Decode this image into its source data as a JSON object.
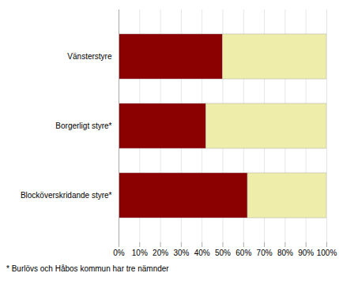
{
  "chart_data": {
    "type": "bar",
    "orientation": "horizontal",
    "stacked": true,
    "categories": [
      "Blocköverskridande styre*",
      "Borgerligt styre*",
      "Vänsterstyre"
    ],
    "series": [
      {
        "color": "#8B0000",
        "values": [
          62,
          42,
          50
        ]
      },
      {
        "color": "#EEEEAA",
        "values": [
          38,
          58,
          50
        ]
      }
    ],
    "xlim": [
      0,
      100
    ],
    "xticks": [
      {
        "value": 0,
        "label": "0%"
      },
      {
        "value": 10,
        "label": "10%"
      },
      {
        "value": 20,
        "label": "20%"
      },
      {
        "value": 30,
        "label": "30%"
      },
      {
        "value": 40,
        "label": "40%"
      },
      {
        "value": 50,
        "label": "50%"
      },
      {
        "value": 60,
        "label": "60%"
      },
      {
        "value": 70,
        "label": "70%"
      },
      {
        "value": 80,
        "label": "80%"
      },
      {
        "value": 90,
        "label": "90%"
      },
      {
        "value": 100,
        "label": "100%"
      }
    ],
    "grid": true,
    "annotations": [
      "* Burlövs och Håbos kommun har tre nämnder"
    ]
  }
}
